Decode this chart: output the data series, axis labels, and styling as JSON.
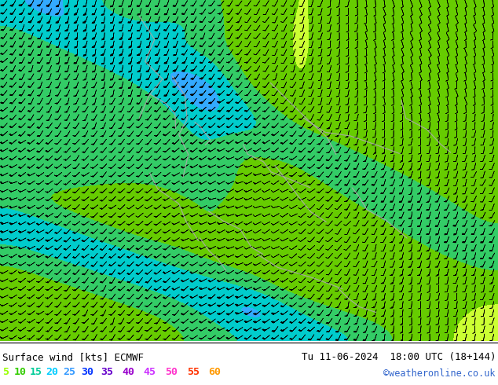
{
  "title_left": "Surface wind [kts] ECMWF",
  "title_right": "Tu 11-06-2024  18:00 UTC (18+144)",
  "credit": "©weatheronline.co.uk",
  "legend_values": [
    5,
    10,
    15,
    20,
    25,
    30,
    35,
    40,
    45,
    50,
    55,
    60
  ],
  "legend_colors": [
    "#99ff00",
    "#33cc00",
    "#00cc99",
    "#00ccff",
    "#3399ff",
    "#0033ff",
    "#6600cc",
    "#9900cc",
    "#cc33ff",
    "#ff33cc",
    "#ff3300",
    "#ff9900"
  ],
  "colormap_boundaries": [
    0,
    5,
    10,
    15,
    20,
    25,
    30,
    35,
    40,
    45,
    50,
    55,
    60,
    200
  ],
  "colormap_colors": [
    "#ffff00",
    "#ccff33",
    "#66cc00",
    "#33cc66",
    "#00cccc",
    "#33aaff",
    "#0055ff",
    "#0000cc",
    "#6600cc",
    "#aa00ff",
    "#ff00ff",
    "#ff0066",
    "#cc3300"
  ],
  "bg_color": "#ffffff",
  "figsize": [
    6.34,
    4.9
  ],
  "dpi": 100,
  "barb_color": "#000000",
  "coast_color": "#aaaaaa"
}
